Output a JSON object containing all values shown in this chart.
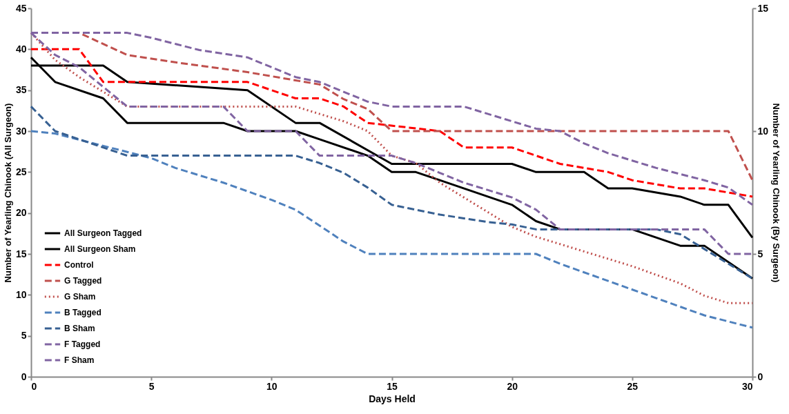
{
  "chart_data": {
    "type": "line",
    "xlabel": "Days Held",
    "ylabel": "Number of Yearling Chinook (All Surgeon)",
    "y2label": "Number of Yearling Chinook (By Surgeon)",
    "xlim": [
      0,
      30
    ],
    "xticks": [
      0,
      5,
      10,
      15,
      20,
      25,
      30
    ],
    "ylim": [
      0,
      45
    ],
    "yticks": [
      0,
      5,
      10,
      15,
      20,
      25,
      30,
      35,
      40,
      45
    ],
    "y2lim": [
      0,
      15
    ],
    "y2ticks": [
      0,
      5,
      10,
      15
    ],
    "grid": false,
    "legend": "bottom left",
    "series": [
      {
        "name": "All Surgeon Tagged",
        "color": "#000000",
        "line_style": "solid",
        "x": [
          0,
          3,
          4,
          9,
          11,
          12,
          15,
          20,
          21,
          23,
          24,
          25,
          27,
          28,
          29,
          30
        ],
        "values": [
          38,
          38,
          36,
          35,
          31,
          31,
          26,
          26,
          25,
          25,
          23,
          23,
          22,
          21,
          21,
          17
        ]
      },
      {
        "name": "All Surgeon Sham",
        "color": "#000000",
        "line_style": "solid",
        "x": [
          0,
          1,
          3,
          4,
          8,
          9,
          11,
          12,
          14,
          15,
          16,
          17,
          20,
          21,
          22,
          25,
          27,
          28,
          30
        ],
        "values": [
          39,
          36,
          34,
          31,
          31,
          30,
          30,
          29,
          27,
          25,
          25,
          24,
          21,
          19,
          18,
          18,
          16,
          16,
          12
        ]
      },
      {
        "name": "Control",
        "color": "#ff0000",
        "line_style": "dashed",
        "x": [
          0,
          2,
          3,
          9,
          10,
          11,
          12,
          13,
          14,
          17,
          18,
          20,
          21,
          22,
          24,
          25,
          27,
          28,
          30
        ],
        "values": [
          40,
          40,
          36,
          36,
          35,
          34,
          34,
          33,
          31,
          30,
          28,
          28,
          27,
          26,
          25,
          24,
          23,
          23,
          22
        ]
      },
      {
        "name": "G Tagged",
        "color": "#c0504d",
        "line_style": "dashed",
        "axis": "y2",
        "x": [
          0,
          2,
          4,
          6,
          9,
          12,
          13,
          14,
          15,
          29,
          30
        ],
        "values": [
          14,
          14,
          13.1,
          12.8,
          12.4,
          11.9,
          11.3,
          10.9,
          10,
          10,
          8
        ]
      },
      {
        "name": "G Sham",
        "color": "#c0504d",
        "line_style": "dotted",
        "axis": "y2",
        "x": [
          0,
          1,
          2,
          4,
          11,
          12,
          13,
          14,
          15,
          16,
          17,
          18,
          19,
          20,
          21,
          22,
          23,
          25,
          27,
          28,
          29,
          30
        ],
        "values": [
          14,
          12.9,
          12.2,
          11,
          11,
          10.7,
          10.4,
          10,
          9,
          8.7,
          7.9,
          7.3,
          6.7,
          6.1,
          5.7,
          5.4,
          5.1,
          4.5,
          3.8,
          3.3,
          3,
          3
        ]
      },
      {
        "name": "B Tagged",
        "color": "#4f81bd",
        "line_style": "dashed",
        "axis": "y2",
        "x": [
          0,
          1,
          3,
          5,
          6,
          8,
          10,
          11,
          13,
          14,
          21,
          22,
          24,
          26,
          28,
          30
        ],
        "values": [
          10,
          9.9,
          9.4,
          8.9,
          8.5,
          7.9,
          7.2,
          6.8,
          5.5,
          5,
          5,
          4.6,
          3.9,
          3.2,
          2.5,
          2
        ]
      },
      {
        "name": "B Sham",
        "color": "#376092",
        "line_style": "dashed",
        "axis": "y2",
        "x": [
          0,
          1,
          4,
          11,
          12,
          13,
          14,
          15,
          16,
          17,
          19,
          20,
          21,
          26,
          27,
          28,
          29,
          30
        ],
        "values": [
          11,
          10,
          9,
          9,
          8.7,
          8.3,
          7.7,
          7,
          6.8,
          6.6,
          6.3,
          6.2,
          6,
          6,
          5.8,
          5.2,
          4.6,
          4
        ]
      },
      {
        "name": "F Tagged",
        "color": "#8064a2",
        "line_style": "dashed",
        "axis": "y2",
        "x": [
          0,
          4,
          5,
          7,
          9,
          10,
          11,
          12,
          13,
          14,
          15,
          18,
          20,
          21,
          22,
          23,
          24,
          25,
          26,
          28,
          29,
          30
        ],
        "values": [
          14,
          14,
          13.8,
          13.3,
          13,
          12.6,
          12.2,
          12,
          11.6,
          11.2,
          11,
          11,
          10.4,
          10.1,
          10,
          9.5,
          9.1,
          8.8,
          8.5,
          8,
          7.7,
          7
        ]
      },
      {
        "name": "F Sham",
        "color": "#8064a2",
        "line_style": "dashed",
        "axis": "y2",
        "x": [
          0,
          1,
          2,
          4,
          8,
          9,
          11,
          12,
          15,
          16,
          17,
          18,
          19,
          20,
          21,
          22,
          28,
          29,
          30
        ],
        "values": [
          14,
          13.1,
          12.6,
          11,
          11,
          10,
          10,
          9,
          9,
          8.7,
          8.3,
          7.9,
          7.6,
          7.3,
          6.8,
          6,
          6,
          5,
          5
        ]
      }
    ]
  }
}
